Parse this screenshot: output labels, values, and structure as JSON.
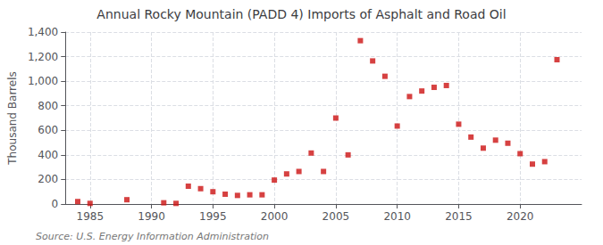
{
  "chart_data": {
    "type": "scatter",
    "title": "Annual Rocky Mountain (PADD 4) Imports of Asphalt and Road Oil",
    "ylabel": "Thousand Barrels",
    "source": "Source: U.S. Energy Information Administration",
    "x": [
      1984,
      1985,
      1988,
      1991,
      1992,
      1993,
      1994,
      1995,
      1996,
      1997,
      1998,
      1999,
      2000,
      2001,
      2002,
      2003,
      2004,
      2005,
      2006,
      2007,
      2008,
      2009,
      2010,
      2011,
      2012,
      2013,
      2014,
      2015,
      2016,
      2017,
      2018,
      2019,
      2020,
      2021,
      2022,
      2023
    ],
    "values": [
      20,
      5,
      35,
      10,
      5,
      145,
      125,
      100,
      80,
      70,
      75,
      75,
      195,
      245,
      265,
      415,
      265,
      700,
      400,
      1330,
      1165,
      1040,
      635,
      875,
      920,
      950,
      965,
      650,
      545,
      455,
      520,
      495,
      410,
      325,
      345,
      1175
    ],
    "color": "#cc1111",
    "marker": "square",
    "xlim": [
      1983,
      2025
    ],
    "xticks": [
      1985,
      1990,
      1995,
      2000,
      2005,
      2010,
      2015,
      2020
    ],
    "ylim": [
      0,
      1400
    ],
    "yticks": [
      0,
      200,
      400,
      600,
      800,
      {
        "value": 1000,
        "label": "1,000"
      },
      {
        "value": 1200,
        "label": "1,200"
      },
      {
        "value": 1400,
        "label": "1,400"
      }
    ],
    "grid": true
  }
}
